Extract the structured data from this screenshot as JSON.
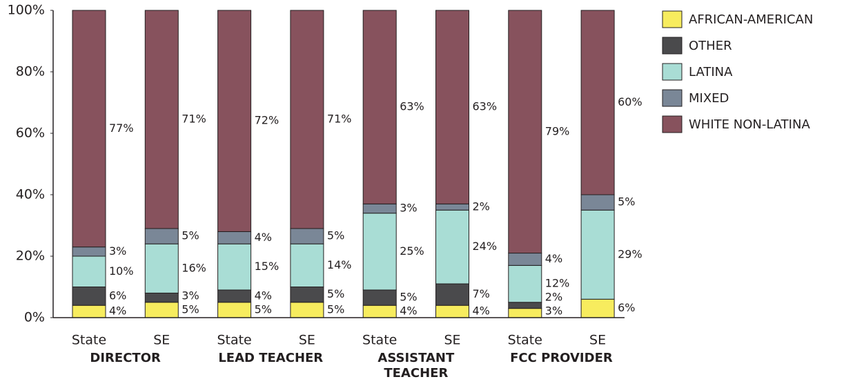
{
  "chart_data": {
    "type": "stacked_bar",
    "categories": [
      "State",
      "SE",
      "State",
      "SE",
      "State",
      "SE",
      "State",
      "SE"
    ],
    "groups": [
      "DIRECTOR",
      "LEAD TEACHER",
      "ASSISTANT TEACHER",
      "FCC PROVIDER"
    ],
    "series": [
      {
        "name": "AFRICAN-AMERICAN",
        "color": "#f7ec5e",
        "values": [
          4,
          5,
          5,
          5,
          4,
          4,
          3,
          6
        ],
        "value_labels": [
          "4%",
          "5%",
          "5%",
          "5%",
          "4%",
          "4%",
          "3%",
          "6%"
        ]
      },
      {
        "name": "OTHER",
        "color": "#4a4a4c",
        "values": [
          6,
          3,
          4,
          5,
          5,
          7,
          2,
          null
        ],
        "value_labels": [
          "6%",
          "3%",
          "4%",
          "5%",
          "5%",
          "7%",
          "2%",
          null
        ]
      },
      {
        "name": "LATINA",
        "color": "#a9ddd5",
        "values": [
          10,
          16,
          15,
          14,
          25,
          24,
          12,
          29
        ],
        "value_labels": [
          "10%",
          "16%",
          "15%",
          "14%",
          "25%",
          "24%",
          "12%",
          "29%"
        ]
      },
      {
        "name": "MIXED",
        "color": "#7a8797",
        "values": [
          3,
          5,
          4,
          5,
          3,
          2,
          4,
          5
        ],
        "value_labels": [
          "3%",
          "5%",
          "4%",
          "5%",
          "3%",
          "2%",
          "4%",
          "5%"
        ]
      },
      {
        "name": "WHITE NON-LATINA",
        "color": "#87525d",
        "values": [
          77,
          71,
          72,
          71,
          63,
          63,
          79,
          60
        ],
        "value_labels": [
          "77%",
          "71%",
          "72%",
          "71%",
          "63%",
          "63%",
          "79%",
          "60%"
        ]
      }
    ],
    "ylim": [
      0,
      100
    ],
    "yticks": [
      {
        "value": 0,
        "label": "0%"
      },
      {
        "value": 20,
        "label": "20%"
      },
      {
        "value": 40,
        "label": "40%"
      },
      {
        "value": 60,
        "label": "60%"
      },
      {
        "value": 80,
        "label": "80%"
      },
      {
        "value": 100,
        "label": "100%"
      }
    ],
    "legend": "right"
  }
}
